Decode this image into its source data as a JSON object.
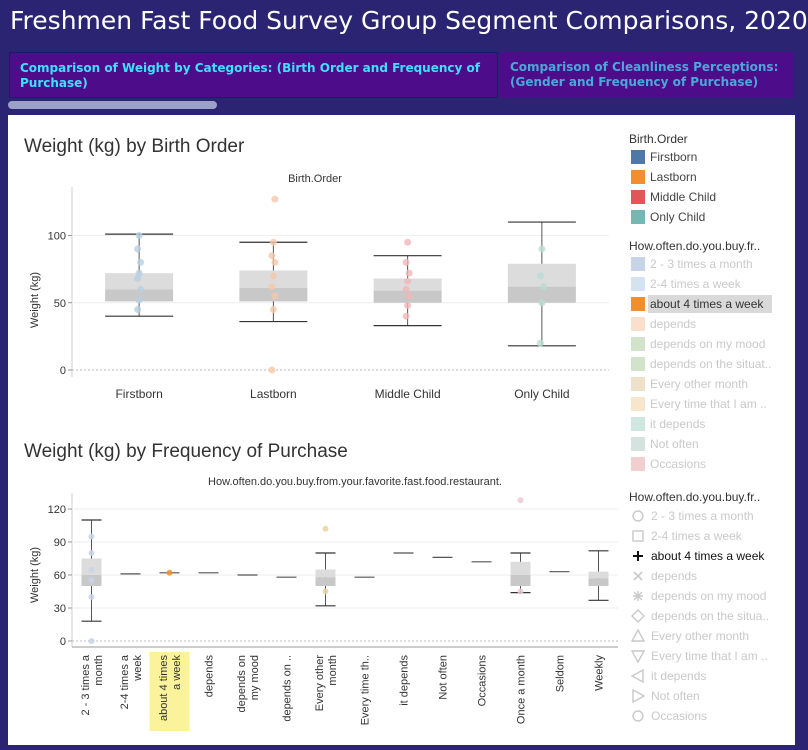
{
  "page": {
    "title": "Freshmen Fast Food Survey Group Segment Comparisons, 2020",
    "tabs": [
      {
        "label": "Comparison of Weight by Categories: (Birth Order and Frequency of Purchase)",
        "active": true
      },
      {
        "label": "Comparison of Cleanliness Perceptions: (Gender and Frequency of Purchase)",
        "active": false
      }
    ]
  },
  "chart_data": [
    {
      "type": "box",
      "title": "Weight (kg) by Birth Order",
      "header": "Birth.Order",
      "ylabel": "Weight (kg)",
      "ylim": [
        0,
        130
      ],
      "yticks": [
        0,
        50,
        100
      ],
      "categories": [
        "Firstborn",
        "Lastborn",
        "Middle Child",
        "Only Child"
      ],
      "boxes": [
        {
          "min": 40,
          "q1": 51,
          "median": 60,
          "q3": 72,
          "max": 101,
          "color": "#dcdcdc",
          "shade": "#c8c8c8"
        },
        {
          "min": 36,
          "q1": 51,
          "median": 61,
          "q3": 74,
          "max": 95,
          "color": "#dcdcdc",
          "shade": "#c8c8c8"
        },
        {
          "min": 33,
          "q1": 50,
          "median": 59,
          "q3": 68,
          "max": 85,
          "color": "#dcdcdc",
          "shade": "#c8c8c8"
        },
        {
          "min": 18,
          "q1": 50,
          "median": 62,
          "q3": 79,
          "max": 110,
          "color": "#dcdcdc",
          "shade": "#c8c8c8"
        }
      ],
      "points": [
        {
          "cat": 0,
          "values": [
            45,
            52,
            60,
            68,
            72,
            80,
            90,
            100
          ],
          "color": "#b8cfe0"
        },
        {
          "cat": 1,
          "values": [
            0,
            45,
            55,
            62,
            70,
            80,
            85,
            95,
            127
          ],
          "color": "#f5c9a8"
        },
        {
          "cat": 2,
          "values": [
            40,
            48,
            55,
            60,
            66,
            72,
            80,
            95
          ],
          "color": "#f0b6b8"
        },
        {
          "cat": 3,
          "values": [
            20,
            50,
            62,
            70,
            90
          ],
          "color": "#b9dcd6"
        }
      ]
    },
    {
      "type": "box",
      "title": "Weight (kg) by Frequency of Purchase",
      "header": "How.often.do.you.buy.from.your.favorite.fast.food.restaurant.",
      "ylabel": "Weight (kg)",
      "ylim": [
        0,
        130
      ],
      "yticks": [
        0,
        30,
        60,
        90,
        120
      ],
      "categories": [
        "2 - 3 times a month",
        "2-4 times a week",
        "about 4 times a week",
        "depends",
        "depends on my mood",
        "depends on ..",
        "Every other month",
        "Every time th..",
        "it depends",
        "Not often",
        "Occasions",
        "Once a month",
        "Seldom",
        "Weekly"
      ],
      "category_lines": [
        [
          "2 - 3 times a",
          "month"
        ],
        [
          "2-4 times a",
          "week"
        ],
        [
          "about 4 times",
          "a week"
        ],
        [
          "depends"
        ],
        [
          "depends on",
          "my mood"
        ],
        [
          "depends on .."
        ],
        [
          "Every other",
          "month"
        ],
        [
          "Every time th.."
        ],
        [
          "it depends"
        ],
        [
          "Not often"
        ],
        [
          "Occasions"
        ],
        [
          "Once a month"
        ],
        [
          "Seldom"
        ],
        [
          "Weekly"
        ]
      ],
      "highlighted_category": "about 4 times a week",
      "boxes": [
        {
          "min": 18,
          "q1": 50,
          "median": 60,
          "q3": 75,
          "max": 110
        },
        {
          "min": 61,
          "q1": 61,
          "median": 61,
          "q3": 61,
          "max": 61
        },
        {
          "min": 62,
          "q1": 62,
          "median": 62,
          "q3": 62,
          "max": 62
        },
        {
          "min": 62,
          "q1": 62,
          "median": 62,
          "q3": 62,
          "max": 62
        },
        {
          "min": 60,
          "q1": 60,
          "median": 60,
          "q3": 60,
          "max": 60
        },
        {
          "min": 58,
          "q1": 58,
          "median": 58,
          "q3": 58,
          "max": 58
        },
        {
          "min": 32,
          "q1": 50,
          "median": 58,
          "q3": 65,
          "max": 80
        },
        {
          "min": 58,
          "q1": 58,
          "median": 58,
          "q3": 58,
          "max": 58
        },
        {
          "min": 80,
          "q1": 80,
          "median": 80,
          "q3": 80,
          "max": 80
        },
        {
          "min": 76,
          "q1": 76,
          "median": 76,
          "q3": 76,
          "max": 76
        },
        {
          "min": 72,
          "q1": 72,
          "median": 72,
          "q3": 72,
          "max": 72
        },
        {
          "min": 44,
          "q1": 50,
          "median": 60,
          "q3": 72,
          "max": 80
        },
        {
          "min": 63,
          "q1": 63,
          "median": 63,
          "q3": 63,
          "max": 63
        },
        {
          "min": 37,
          "q1": 50,
          "median": 57,
          "q3": 63,
          "max": 82
        }
      ],
      "points": [
        {
          "cat": 0,
          "values": [
            0,
            40,
            55,
            65,
            80,
            95
          ],
          "color": "#c8d4e6"
        },
        {
          "cat": 2,
          "values": [
            62
          ],
          "color": "#f28e2b"
        },
        {
          "cat": 6,
          "values": [
            45,
            102
          ],
          "color": "#e6d6a0"
        },
        {
          "cat": 11,
          "values": [
            45,
            128
          ],
          "color": "#ecc8d4"
        }
      ]
    }
  ],
  "legends": [
    {
      "header": "Birth.Order",
      "kind": "color",
      "items": [
        {
          "label": "Firstborn",
          "color": "#4e79a7",
          "faded": false
        },
        {
          "label": "Lastborn",
          "color": "#f28e2b",
          "faded": false
        },
        {
          "label": "Middle Child",
          "color": "#e15759",
          "faded": false
        },
        {
          "label": "Only Child",
          "color": "#76b7b2",
          "faded": false
        }
      ]
    },
    {
      "header": "How.often.do.you.buy.fr..",
      "kind": "color",
      "items": [
        {
          "label": "2 - 3 times a month",
          "color": "#c7d4e6",
          "faded": true
        },
        {
          "label": "2-4 times a week",
          "color": "#d5e2ef",
          "faded": true
        },
        {
          "label": "about 4 times a week",
          "color": "#f28e2b",
          "faded": false,
          "selected": true
        },
        {
          "label": "depends",
          "color": "#f9e0cc",
          "faded": true
        },
        {
          "label": "depends on my mood",
          "color": "#d2e3cc",
          "faded": true
        },
        {
          "label": "depends on the situat..",
          "color": "#d2e3cc",
          "faded": true
        },
        {
          "label": "Every other month",
          "color": "#ede1c9",
          "faded": true
        },
        {
          "label": "Every time that I am ..",
          "color": "#f5e6cc",
          "faded": true
        },
        {
          "label": "it depends",
          "color": "#d0e6e0",
          "faded": true
        },
        {
          "label": "Not often",
          "color": "#d5e3e0",
          "faded": true
        },
        {
          "label": "Occasions",
          "color": "#f0cfcf",
          "faded": true
        }
      ]
    },
    {
      "header": "How.often.do.you.buy.fr..",
      "kind": "shape",
      "items": [
        {
          "label": "2 - 3 times a month",
          "shape": "circle",
          "faded": true
        },
        {
          "label": "2-4 times a week",
          "shape": "square",
          "faded": true
        },
        {
          "label": "about 4 times a week",
          "shape": "plus",
          "faded": false
        },
        {
          "label": "depends",
          "shape": "cross",
          "faded": true
        },
        {
          "label": "depends on my mood",
          "shape": "asterisk",
          "faded": true
        },
        {
          "label": "depends on the situa..",
          "shape": "diamond",
          "faded": true
        },
        {
          "label": "Every other month",
          "shape": "triangle-up",
          "faded": true
        },
        {
          "label": "Every time that I am ..",
          "shape": "triangle-down",
          "faded": true
        },
        {
          "label": "it depends",
          "shape": "triangle-left",
          "faded": true
        },
        {
          "label": "Not often",
          "shape": "triangle-right",
          "faded": true
        },
        {
          "label": "Occasions",
          "shape": "circle",
          "faded": true
        }
      ]
    }
  ]
}
